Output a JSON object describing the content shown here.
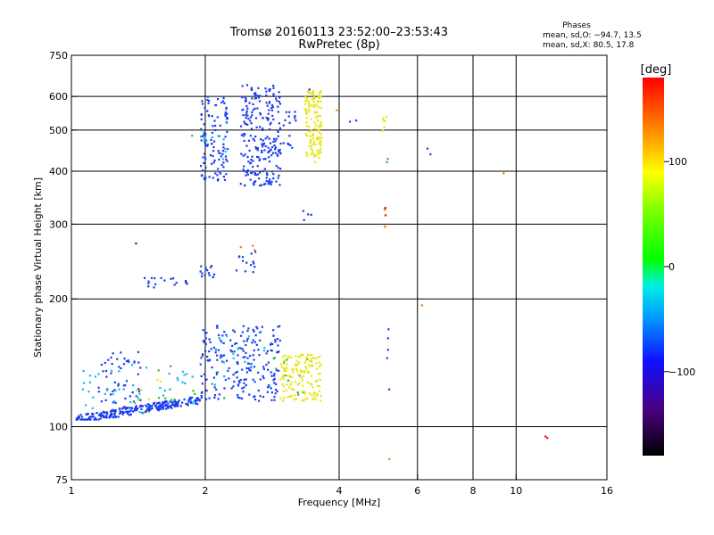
{
  "chart_data": {
    "type": "scatter",
    "title": "Tromsø 20160113 23:52:00–23:53:43",
    "subtitle": "RwPretec (8p)",
    "stats": {
      "heading": "Phases",
      "line1": "mean, sd,O: −94.7, 13.5",
      "line2": "mean, sd,X:  80.5, 17.8"
    },
    "xlabel": "Frequency [MHz]",
    "ylabel": "Stationary phase Virtual Height [km]",
    "x_scale": "log",
    "y_scale": "log",
    "xlim": [
      1,
      16
    ],
    "ylim": [
      75,
      750
    ],
    "x_ticks": [
      {
        "value": 1,
        "label": "1"
      },
      {
        "value": 2,
        "label": "2"
      },
      {
        "value": 4,
        "label": "4"
      },
      {
        "value": 6,
        "label": "6"
      },
      {
        "value": 8,
        "label": "8"
      },
      {
        "value": 10,
        "label": "10"
      },
      {
        "value": 16,
        "label": "16"
      }
    ],
    "x_grid": [
      2,
      4,
      6,
      8,
      10
    ],
    "y_ticks": [
      {
        "value": 75,
        "label": "75"
      },
      {
        "value": 100,
        "label": "100"
      },
      {
        "value": 200,
        "label": "200"
      },
      {
        "value": 300,
        "label": "300"
      },
      {
        "value": 400,
        "label": "400"
      },
      {
        "value": 500,
        "label": "500"
      },
      {
        "value": 600,
        "label": "600"
      },
      {
        "value": 750,
        "label": "750"
      }
    ],
    "y_grid": [
      100,
      200,
      300,
      400,
      500,
      600
    ],
    "grid": true,
    "colorbar": {
      "label": "[deg]",
      "range": [
        -180,
        180
      ],
      "ticks": [
        {
          "value": 100,
          "label": "100"
        },
        {
          "value": 0,
          "label": "0"
        },
        {
          "value": -100,
          "label": "−100"
        }
      ]
    },
    "series": [
      {
        "color": "#1a3cf0",
        "clusters": [
          {
            "f": [
              1.02,
              1.95
            ],
            "h": [
              104,
              118
            ],
            "n": 240,
            "tilt": 0.85
          },
          {
            "f": [
              1.15,
              1.45
            ],
            "h": [
              110,
              150
            ],
            "n": 55
          },
          {
            "f": [
              1.95,
              2.95
            ],
            "h": [
              115,
              175
            ],
            "n": 210
          },
          {
            "f": [
              1.45,
              1.85
            ],
            "h": [
              213,
              226
            ],
            "n": 18
          },
          {
            "f": [
              1.95,
              2.15
            ],
            "h": [
              224,
              240
            ],
            "n": 14
          },
          {
            "f": [
              2.3,
              2.6
            ],
            "h": [
              230,
              260
            ],
            "n": 14
          },
          {
            "f": [
              1.95,
              2.25
            ],
            "h": [
              380,
              600
            ],
            "n": 110
          },
          {
            "f": [
              2.4,
              2.95
            ],
            "h": [
              370,
              640
            ],
            "n": 230
          },
          {
            "f": [
              2.95,
              3.2
            ],
            "h": [
              430,
              560
            ],
            "n": 18
          },
          {
            "f": [
              5.1,
              5.2
            ],
            "h": [
              120,
              180
            ],
            "n": 5
          },
          {
            "f": [
              3.3,
              3.5
            ],
            "h": [
              300,
              330
            ],
            "n": 4
          },
          {
            "f": [
              4.2,
              4.4
            ],
            "h": [
              520,
              530
            ],
            "n": 2
          },
          {
            "f": [
              6.0,
              6.5
            ],
            "h": [
              420,
              460
            ],
            "n": 2
          }
        ]
      },
      {
        "color": "#10b8f0",
        "clusters": [
          {
            "f": [
              1.05,
              1.9
            ],
            "h": [
              107,
              140
            ],
            "n": 45
          },
          {
            "f": [
              2.1,
              2.8
            ],
            "h": [
              120,
              170
            ],
            "n": 20
          },
          {
            "f": [
              1.95,
              2.3
            ],
            "h": [
              400,
              540
            ],
            "n": 10
          }
        ]
      },
      {
        "color": "#2ab82a",
        "clusters": [
          {
            "f": [
              1.5,
              2.3
            ],
            "h": [
              112,
              160
            ],
            "n": 12
          },
          {
            "f": [
              2.8,
              3.4
            ],
            "h": [
              118,
              150
            ],
            "n": 12
          },
          {
            "f": [
              1.8,
              2.0
            ],
            "h": [
              470,
              520
            ],
            "n": 3
          },
          {
            "f": [
              5.0,
              5.15
            ],
            "h": [
              420,
              430
            ],
            "n": 2
          }
        ]
      },
      {
        "color": "#e8e614",
        "clusters": [
          {
            "f": [
              2.95,
              3.65
            ],
            "h": [
              115,
              148
            ],
            "n": 140
          },
          {
            "f": [
              3.35,
              3.65
            ],
            "h": [
              420,
              620
            ],
            "n": 130
          },
          {
            "f": [
              5.0,
              5.15
            ],
            "h": [
              490,
              560
            ],
            "n": 6
          },
          {
            "f": [
              1.3,
              1.6
            ],
            "h": [
              108,
              130
            ],
            "n": 8
          }
        ]
      },
      {
        "color": "#f08010",
        "clusters": [
          {
            "f": [
              5.05,
              5.1
            ],
            "h": [
              255,
              340
            ],
            "n": 4
          },
          {
            "f": [
              3.95,
              4.0
            ],
            "h": [
              550,
              560
            ],
            "n": 1
          },
          {
            "f": [
              6.05,
              6.15
            ],
            "h": [
              190,
              195
            ],
            "n": 1
          },
          {
            "f": [
              9.2,
              9.4
            ],
            "h": [
              390,
              400
            ],
            "n": 1
          },
          {
            "f": [
              5.15,
              5.2
            ],
            "h": [
              83,
              85
            ],
            "n": 1
          },
          {
            "f": [
              2.4,
              2.6
            ],
            "h": [
              260,
              270
            ],
            "n": 3
          }
        ]
      },
      {
        "color": "#e01010",
        "clusters": [
          {
            "f": [
              11.5,
              11.8
            ],
            "h": [
              93,
              97
            ],
            "n": 2
          },
          {
            "f": [
              5.05,
              5.1
            ],
            "h": [
              305,
              335
            ],
            "n": 2
          }
        ]
      },
      {
        "color": "#4a10a0",
        "clusters": [
          {
            "f": [
              1.35,
              1.4
            ],
            "h": [
              270,
              275
            ],
            "n": 1
          },
          {
            "f": [
              3.35,
              3.45
            ],
            "h": [
              615,
              625
            ],
            "n": 1
          }
        ]
      }
    ]
  }
}
